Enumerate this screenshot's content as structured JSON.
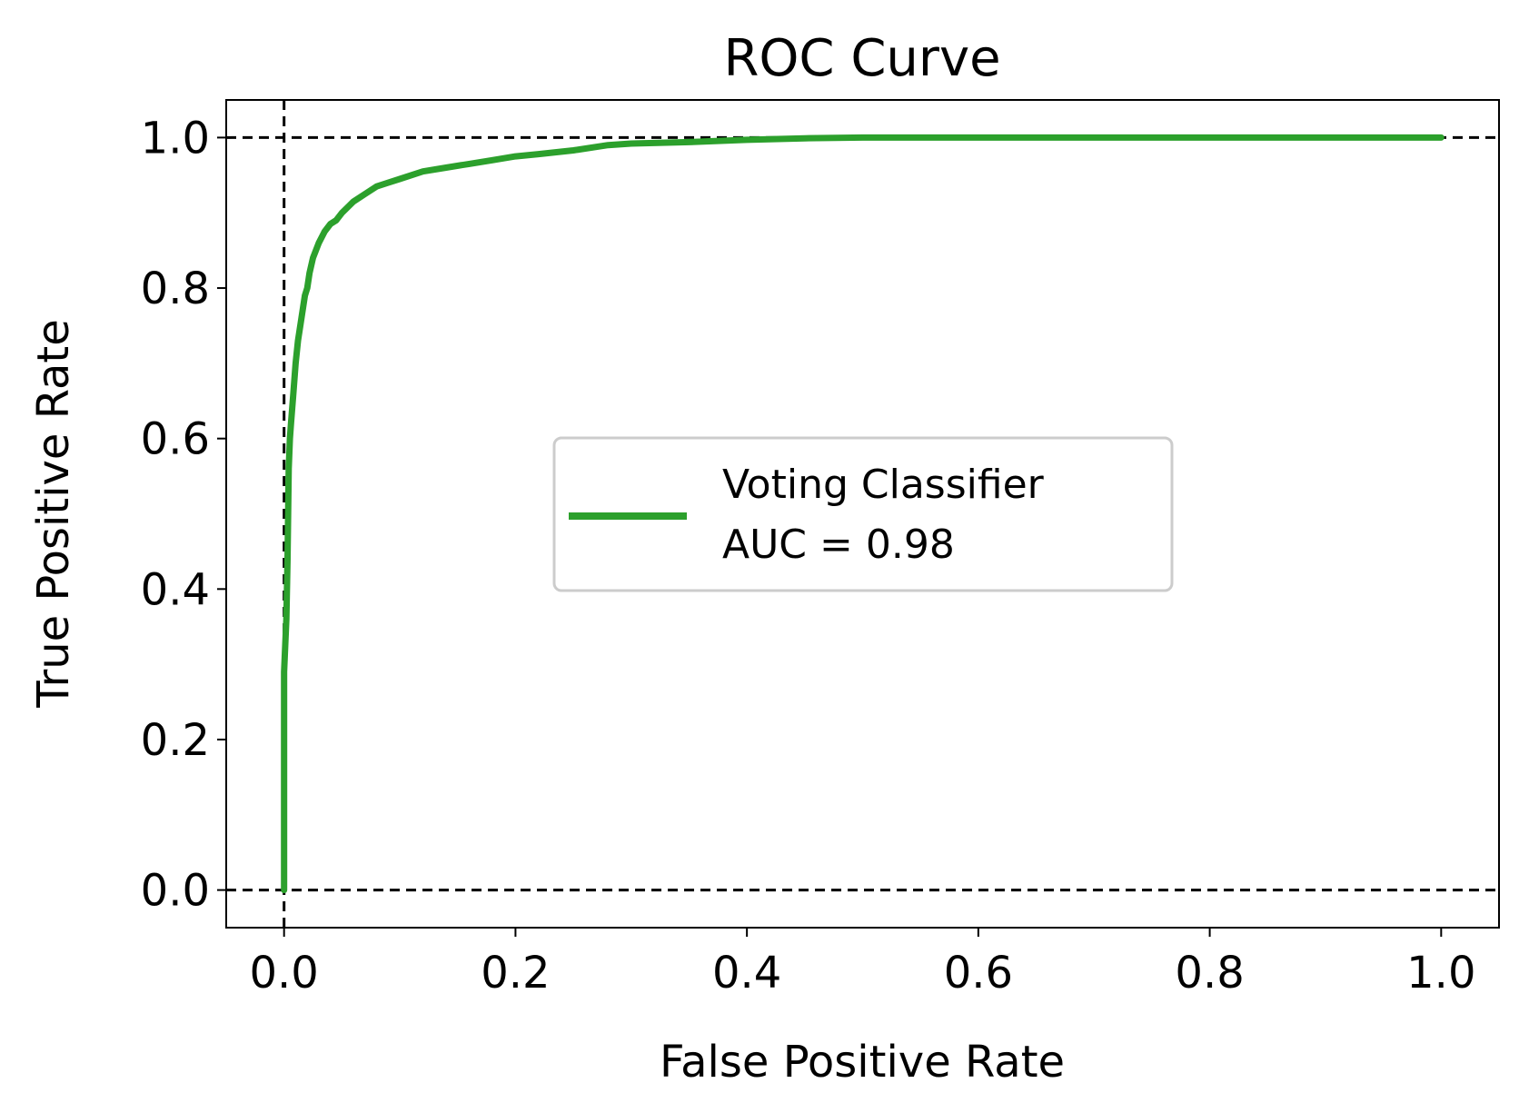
{
  "chart_data": {
    "type": "line",
    "title": "ROC Curve",
    "xlabel": "False Positive Rate",
    "ylabel": "True Positive Rate",
    "xlim": [
      -0.05,
      1.05
    ],
    "ylim": [
      -0.05,
      1.05
    ],
    "xticks": [
      0.0,
      0.2,
      0.4,
      0.6,
      0.8,
      1.0
    ],
    "xtick_labels": [
      "0.0",
      "0.2",
      "0.4",
      "0.6",
      "0.8",
      "1.0"
    ],
    "yticks": [
      0.0,
      0.2,
      0.4,
      0.6,
      0.8,
      1.0
    ],
    "ytick_labels": [
      "0.0",
      "0.2",
      "0.4",
      "0.6",
      "0.8",
      "1.0"
    ],
    "grid": false,
    "legend_position": "center-right",
    "reference_lines": [
      {
        "orientation": "horizontal",
        "value": 0.0,
        "style": "dashed",
        "color": "#000000"
      },
      {
        "orientation": "horizontal",
        "value": 1.0,
        "style": "dashed",
        "color": "#000000"
      },
      {
        "orientation": "vertical",
        "value": 0.0,
        "style": "dashed",
        "color": "#000000"
      }
    ],
    "series": [
      {
        "name": "Voting Classifier",
        "auc_label": "AUC = 0.98",
        "color": "#2ca02c",
        "x": [
          0.0,
          0.0,
          0.002,
          0.003,
          0.004,
          0.005,
          0.006,
          0.008,
          0.01,
          0.012,
          0.015,
          0.018,
          0.02,
          0.022,
          0.025,
          0.03,
          0.035,
          0.04,
          0.045,
          0.05,
          0.06,
          0.07,
          0.08,
          0.09,
          0.1,
          0.12,
          0.14,
          0.16,
          0.18,
          0.2,
          0.22,
          0.25,
          0.28,
          0.3,
          0.35,
          0.4,
          0.45,
          0.5,
          0.6,
          0.7,
          0.8,
          0.9,
          1.0
        ],
        "y": [
          0.0,
          0.29,
          0.36,
          0.44,
          0.56,
          0.6,
          0.62,
          0.66,
          0.7,
          0.73,
          0.76,
          0.79,
          0.8,
          0.82,
          0.84,
          0.86,
          0.875,
          0.885,
          0.89,
          0.9,
          0.915,
          0.925,
          0.935,
          0.94,
          0.945,
          0.955,
          0.96,
          0.965,
          0.97,
          0.975,
          0.978,
          0.983,
          0.99,
          0.992,
          0.994,
          0.997,
          0.999,
          1.0,
          1.0,
          1.0,
          1.0,
          1.0,
          1.0
        ]
      }
    ]
  }
}
